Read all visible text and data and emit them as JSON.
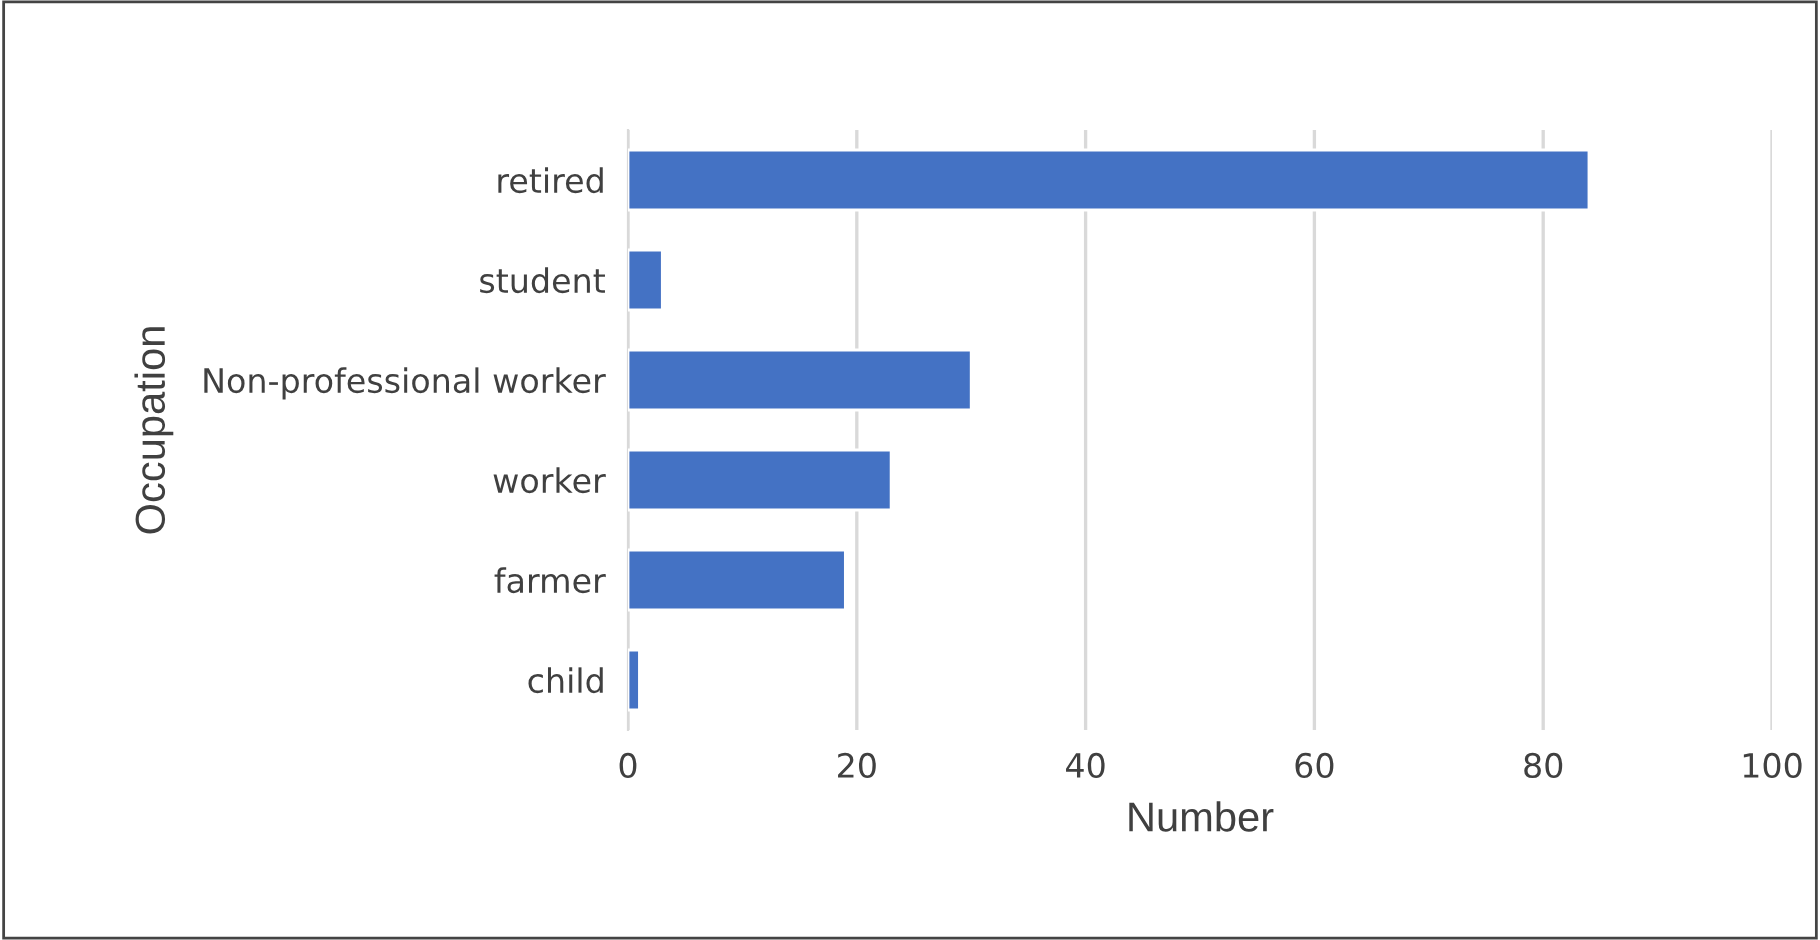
{
  "chart_data": {
    "type": "bar",
    "orientation": "horizontal",
    "xlabel": "Number",
    "ylabel": "Occupation",
    "categories": [
      "retired",
      "student",
      "Non-professional worker",
      "worker",
      "farmer",
      "child"
    ],
    "values": [
      84,
      3,
      30,
      23,
      19,
      1
    ],
    "color": "#4472c4",
    "xlim": [
      0,
      100
    ],
    "xticks": [
      0,
      20,
      40,
      60,
      80,
      100
    ],
    "grid": "x"
  }
}
